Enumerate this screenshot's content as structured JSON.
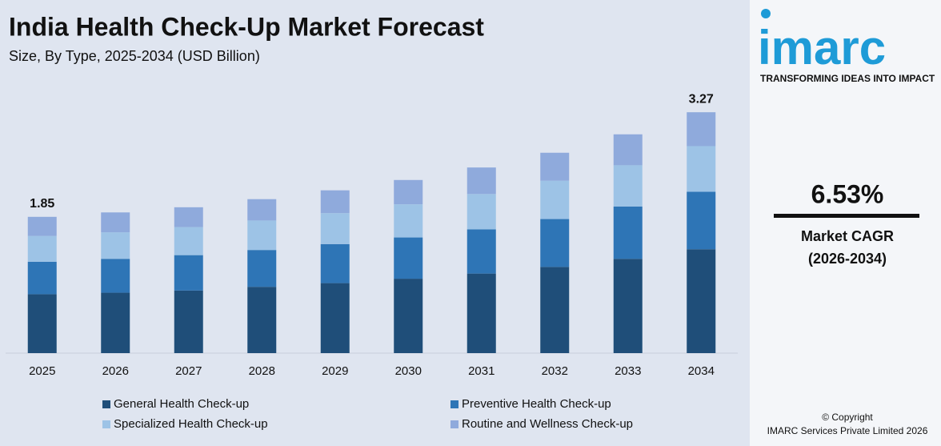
{
  "chart_data": {
    "type": "stacked-bar",
    "title": "India Health Check-Up Market Forecast",
    "subtitle": "Size, By Type, 2025-2034 (USD Billion)",
    "categories": [
      "2025",
      "2026",
      "2027",
      "2028",
      "2029",
      "2030",
      "2031",
      "2032",
      "2033",
      "2034"
    ],
    "series": [
      {
        "name": "General Health Check-up",
        "color": "#1f4e79",
        "values": [
          0.8,
          0.82,
          0.85,
          0.9,
          0.95,
          1.01,
          1.08,
          1.17,
          1.28,
          1.41
        ]
      },
      {
        "name": "Preventive Health Check-up",
        "color": "#2e75b6",
        "values": [
          0.44,
          0.46,
          0.48,
          0.5,
          0.53,
          0.56,
          0.6,
          0.65,
          0.71,
          0.78
        ]
      },
      {
        "name": "Specialized Health Check-up",
        "color": "#9dc3e6",
        "values": [
          0.35,
          0.36,
          0.38,
          0.4,
          0.42,
          0.45,
          0.48,
          0.52,
          0.56,
          0.62
        ]
      },
      {
        "name": "Routine and Wellness Check-up",
        "color": "#8faadc",
        "values": [
          0.26,
          0.27,
          0.27,
          0.29,
          0.31,
          0.33,
          0.36,
          0.38,
          0.42,
          0.46
        ]
      }
    ],
    "totals": [
      1.85,
      null,
      null,
      null,
      null,
      null,
      null,
      null,
      null,
      3.27
    ],
    "ylim": [
      0,
      3.5
    ]
  },
  "sidebar": {
    "logo": "imarc",
    "tagline": "TRANSFORMING IDEAS INTO IMPACT",
    "cagr": "6.53%",
    "cagr_label": "Market CAGR",
    "cagr_period": "(2026-2034)",
    "copyright": "© Copyright",
    "company": "IMARC Services Private Limited 2026"
  }
}
